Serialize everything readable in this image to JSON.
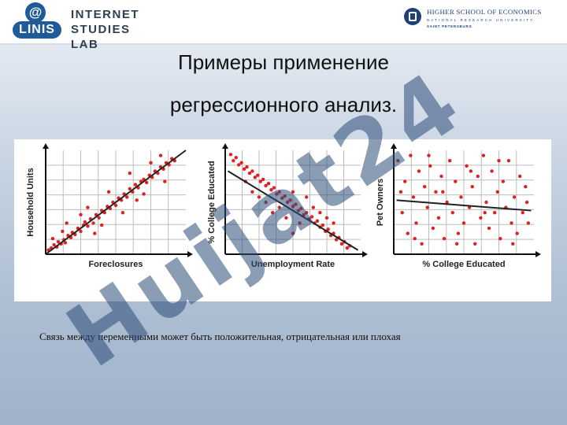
{
  "header": {
    "linis_at": "@",
    "linis_name": "LINIS",
    "linis_line1": "INTERNET",
    "linis_line2": "STUDIES LAB",
    "hse_line1": "HIGHER SCHOOL OF ECONOMICS",
    "hse_line2": "NATIONAL RESEARCH UNIVERSITY",
    "hse_line3": "SAINT PETERSBURG"
  },
  "title": {
    "line1": "Примеры применение",
    "line2": "регрессионного анализ."
  },
  "watermark": {
    "text": "Huijat24",
    "color": "#2b4a78"
  },
  "colors": {
    "point": "#e02020",
    "line": "#222222",
    "grid": "#bdbdbd"
  },
  "chart_data": [
    {
      "type": "scatter",
      "xlabel": "Foreclosures",
      "ylabel": "Household Units",
      "trend": "positive",
      "points": [
        [
          2,
          4
        ],
        [
          4,
          6
        ],
        [
          6,
          9
        ],
        [
          8,
          7
        ],
        [
          9,
          12
        ],
        [
          11,
          10
        ],
        [
          13,
          14
        ],
        [
          14,
          11
        ],
        [
          16,
          18
        ],
        [
          18,
          16
        ],
        [
          19,
          21
        ],
        [
          21,
          19
        ],
        [
          23,
          25
        ],
        [
          25,
          22
        ],
        [
          27,
          28
        ],
        [
          28,
          31
        ],
        [
          30,
          27
        ],
        [
          32,
          34
        ],
        [
          34,
          30
        ],
        [
          36,
          38
        ],
        [
          38,
          35
        ],
        [
          40,
          42
        ],
        [
          42,
          40
        ],
        [
          44,
          46
        ],
        [
          46,
          44
        ],
        [
          48,
          50
        ],
        [
          50,
          47
        ],
        [
          52,
          54
        ],
        [
          54,
          52
        ],
        [
          56,
          58
        ],
        [
          58,
          55
        ],
        [
          60,
          63
        ],
        [
          62,
          60
        ],
        [
          64,
          67
        ],
        [
          66,
          64
        ],
        [
          68,
          70
        ],
        [
          70,
          72
        ],
        [
          72,
          69
        ],
        [
          74,
          76
        ],
        [
          76,
          74
        ],
        [
          78,
          80
        ],
        [
          80,
          78
        ],
        [
          82,
          84
        ],
        [
          84,
          82
        ],
        [
          86,
          88
        ],
        [
          88,
          86
        ],
        [
          90,
          92
        ],
        [
          15,
          30
        ],
        [
          25,
          38
        ],
        [
          35,
          20
        ],
        [
          45,
          60
        ],
        [
          55,
          40
        ],
        [
          65,
          52
        ],
        [
          75,
          88
        ],
        [
          85,
          70
        ],
        [
          92,
          90
        ],
        [
          5,
          15
        ],
        [
          12,
          22
        ],
        [
          30,
          45
        ],
        [
          40,
          28
        ],
        [
          60,
          78
        ],
        [
          70,
          58
        ],
        [
          82,
          95
        ]
      ],
      "trendline": [
        [
          0,
          0
        ],
        [
          100,
          100
        ]
      ]
    },
    {
      "type": "scatter",
      "xlabel": "Unemployment Rate",
      "ylabel": "% College Educated",
      "trend": "negative",
      "points": [
        [
          4,
          96
        ],
        [
          6,
          90
        ],
        [
          8,
          93
        ],
        [
          10,
          86
        ],
        [
          12,
          88
        ],
        [
          14,
          82
        ],
        [
          16,
          84
        ],
        [
          18,
          78
        ],
        [
          20,
          80
        ],
        [
          22,
          74
        ],
        [
          24,
          76
        ],
        [
          26,
          70
        ],
        [
          28,
          72
        ],
        [
          30,
          66
        ],
        [
          32,
          68
        ],
        [
          34,
          62
        ],
        [
          36,
          64
        ],
        [
          38,
          58
        ],
        [
          40,
          60
        ],
        [
          42,
          54
        ],
        [
          44,
          56
        ],
        [
          46,
          50
        ],
        [
          48,
          52
        ],
        [
          50,
          46
        ],
        [
          52,
          48
        ],
        [
          54,
          42
        ],
        [
          56,
          44
        ],
        [
          58,
          38
        ],
        [
          60,
          40
        ],
        [
          62,
          34
        ],
        [
          64,
          36
        ],
        [
          66,
          30
        ],
        [
          68,
          32
        ],
        [
          70,
          26
        ],
        [
          72,
          28
        ],
        [
          74,
          22
        ],
        [
          76,
          24
        ],
        [
          78,
          18
        ],
        [
          80,
          20
        ],
        [
          82,
          14
        ],
        [
          84,
          16
        ],
        [
          86,
          10
        ],
        [
          88,
          12
        ],
        [
          90,
          6
        ],
        [
          92,
          8
        ],
        [
          30,
          50
        ],
        [
          40,
          45
        ],
        [
          50,
          60
        ],
        [
          45,
          35
        ],
        [
          55,
          30
        ],
        [
          60,
          55
        ],
        [
          35,
          40
        ],
        [
          65,
          45
        ],
        [
          70,
          40
        ],
        [
          20,
          60
        ],
        [
          25,
          55
        ],
        [
          15,
          70
        ],
        [
          50,
          20
        ],
        [
          75,
          35
        ],
        [
          80,
          30
        ]
      ],
      "trendline": [
        [
          2,
          80
        ],
        [
          98,
          4
        ]
      ]
    },
    {
      "type": "scatter",
      "xlabel": "% College Educated",
      "ylabel": "Pet Owners",
      "trend": "none",
      "points": [
        [
          3,
          90
        ],
        [
          6,
          40
        ],
        [
          8,
          70
        ],
        [
          10,
          20
        ],
        [
          12,
          95
        ],
        [
          14,
          55
        ],
        [
          16,
          30
        ],
        [
          18,
          80
        ],
        [
          20,
          10
        ],
        [
          22,
          65
        ],
        [
          24,
          45
        ],
        [
          26,
          85
        ],
        [
          28,
          25
        ],
        [
          30,
          60
        ],
        [
          32,
          35
        ],
        [
          34,
          75
        ],
        [
          36,
          15
        ],
        [
          38,
          50
        ],
        [
          40,
          90
        ],
        [
          42,
          40
        ],
        [
          44,
          70
        ],
        [
          46,
          20
        ],
        [
          48,
          55
        ],
        [
          50,
          30
        ],
        [
          52,
          85
        ],
        [
          54,
          45
        ],
        [
          56,
          65
        ],
        [
          58,
          10
        ],
        [
          60,
          75
        ],
        [
          62,
          35
        ],
        [
          64,
          95
        ],
        [
          66,
          50
        ],
        [
          68,
          25
        ],
        [
          70,
          80
        ],
        [
          72,
          40
        ],
        [
          74,
          60
        ],
        [
          76,
          15
        ],
        [
          78,
          70
        ],
        [
          80,
          45
        ],
        [
          82,
          90
        ],
        [
          84,
          30
        ],
        [
          86,
          55
        ],
        [
          88,
          20
        ],
        [
          90,
          75
        ],
        [
          92,
          40
        ],
        [
          94,
          65
        ],
        [
          96,
          30
        ],
        [
          5,
          60
        ],
        [
          15,
          15
        ],
        [
          25,
          95
        ],
        [
          35,
          60
        ],
        [
          45,
          10
        ],
        [
          55,
          80
        ],
        [
          65,
          40
        ],
        [
          75,
          90
        ],
        [
          85,
          10
        ],
        [
          95,
          50
        ]
      ],
      "trendline": [
        [
          2,
          52
        ],
        [
          98,
          42
        ]
      ]
    }
  ],
  "caption": "Связь между переменными может быть положительная, отрицательная или плохая"
}
